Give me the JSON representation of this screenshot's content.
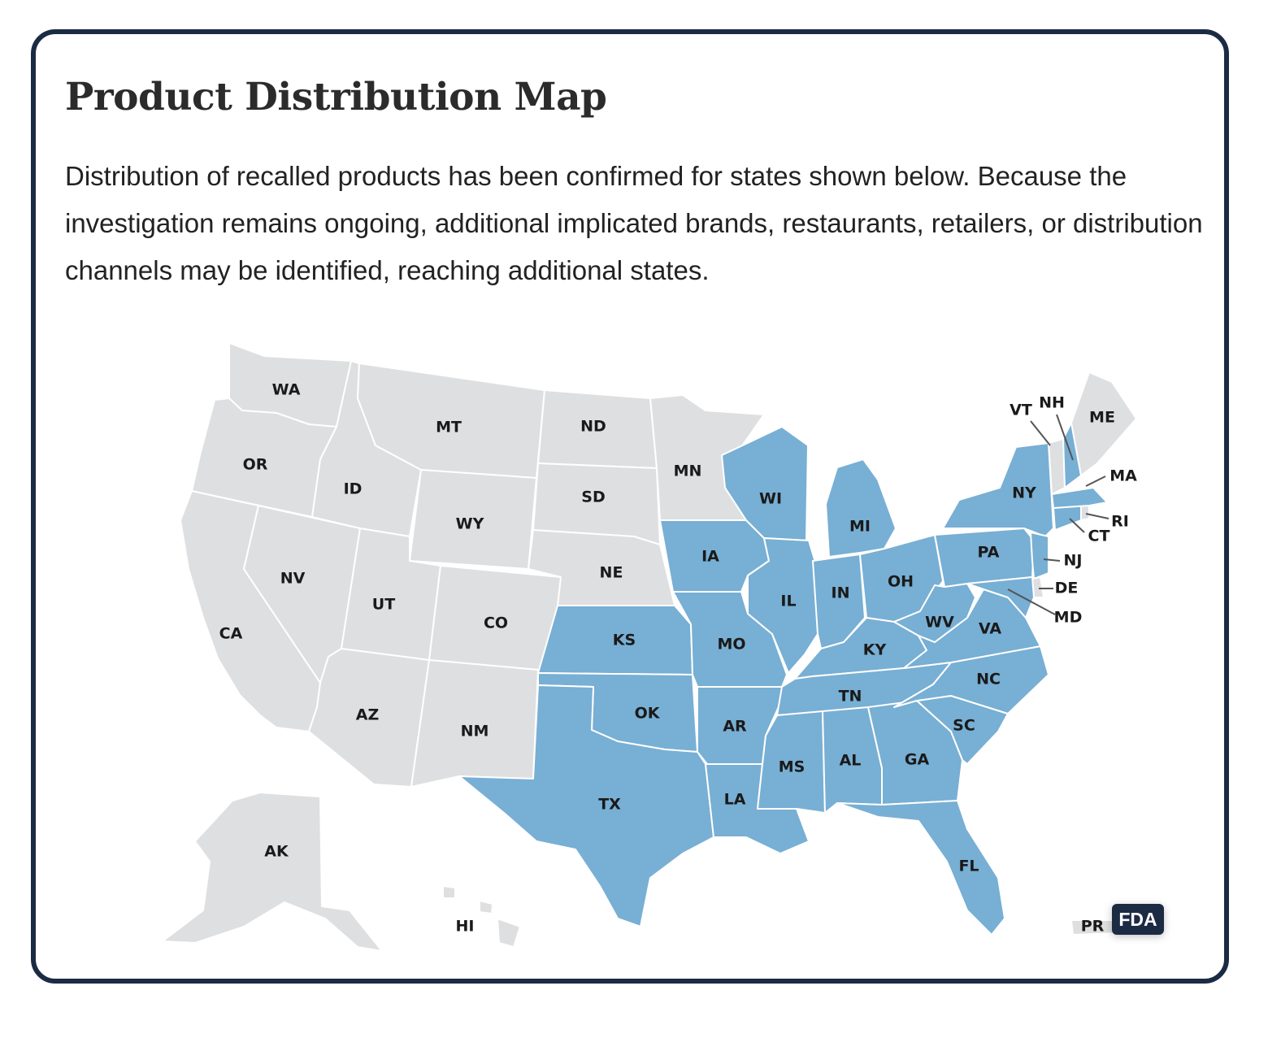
{
  "title": "Product Distribution Map",
  "description": "Distribution of recalled products has been confirmed for states shown below. Because the investigation remains ongoing, additional implicated brands, restaurants, retailers, or distribution channels may be identified, reaching additional states.",
  "badge": "FDA",
  "colors": {
    "confirmed": "#78afd4",
    "not_confirmed": "#dedfe0",
    "border": "#ffffff",
    "card_border": "#1c2b44"
  },
  "states": {
    "WA": {
      "confirmed": false
    },
    "OR": {
      "confirmed": false
    },
    "CA": {
      "confirmed": false
    },
    "ID": {
      "confirmed": false
    },
    "NV": {
      "confirmed": false
    },
    "MT": {
      "confirmed": false
    },
    "WY": {
      "confirmed": false
    },
    "UT": {
      "confirmed": false
    },
    "AZ": {
      "confirmed": false
    },
    "CO": {
      "confirmed": false
    },
    "NM": {
      "confirmed": false
    },
    "ND": {
      "confirmed": false
    },
    "SD": {
      "confirmed": false
    },
    "NE": {
      "confirmed": false
    },
    "MN": {
      "confirmed": false
    },
    "KS": {
      "confirmed": true
    },
    "OK": {
      "confirmed": true
    },
    "TX": {
      "confirmed": true
    },
    "IA": {
      "confirmed": true
    },
    "MO": {
      "confirmed": true
    },
    "AR": {
      "confirmed": true
    },
    "LA": {
      "confirmed": true
    },
    "WI": {
      "confirmed": true
    },
    "IL": {
      "confirmed": true
    },
    "MI": {
      "confirmed": true
    },
    "IN": {
      "confirmed": true
    },
    "OH": {
      "confirmed": true
    },
    "KY": {
      "confirmed": true
    },
    "TN": {
      "confirmed": true
    },
    "MS": {
      "confirmed": true
    },
    "AL": {
      "confirmed": true
    },
    "GA": {
      "confirmed": true
    },
    "FL": {
      "confirmed": true
    },
    "SC": {
      "confirmed": true
    },
    "NC": {
      "confirmed": true
    },
    "VA": {
      "confirmed": true
    },
    "WV": {
      "confirmed": true
    },
    "PA": {
      "confirmed": true
    },
    "NY": {
      "confirmed": true
    },
    "NJ": {
      "confirmed": true
    },
    "DE": {
      "confirmed": false
    },
    "MD": {
      "confirmed": true
    },
    "CT": {
      "confirmed": true
    },
    "RI": {
      "confirmed": false
    },
    "MA": {
      "confirmed": true
    },
    "VT": {
      "confirmed": false
    },
    "NH": {
      "confirmed": true
    },
    "ME": {
      "confirmed": false
    },
    "AK": {
      "confirmed": false
    },
    "HI": {
      "confirmed": false
    },
    "PR": {
      "confirmed": false
    }
  }
}
